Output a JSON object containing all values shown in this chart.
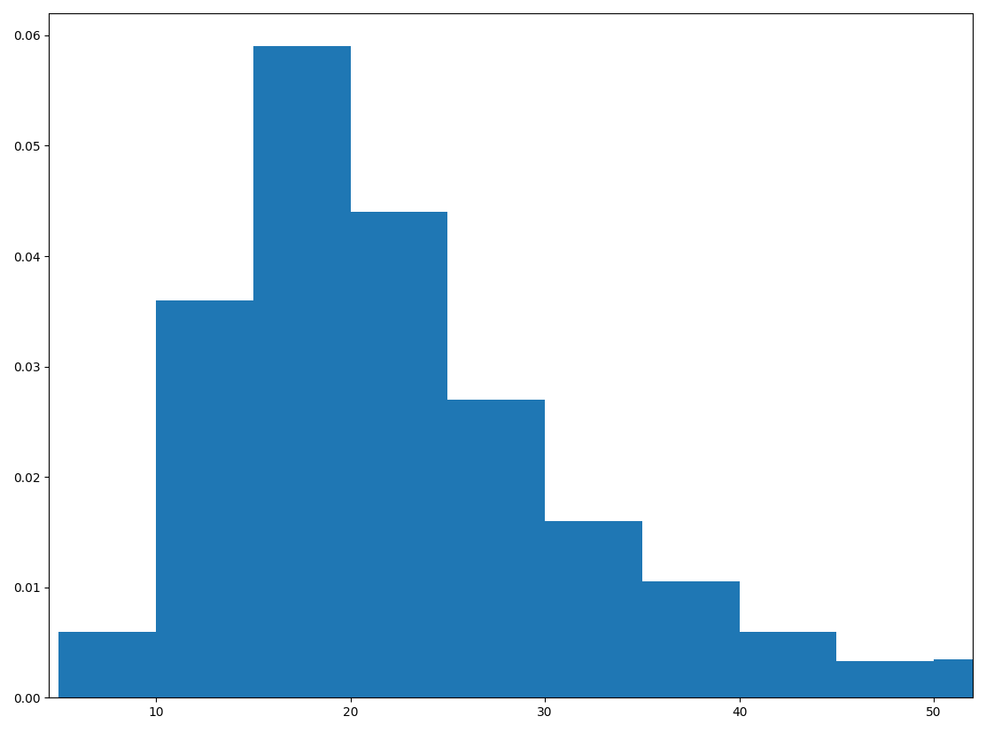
{
  "bin_edges": [
    5,
    10,
    15,
    20,
    25,
    30,
    35,
    40,
    45,
    50,
    52
  ],
  "densities": [
    0.006,
    0.036,
    0.059,
    0.044,
    0.027,
    0.016,
    0.0105,
    0.006,
    0.0033,
    0.0035
  ],
  "bar_color": "#1f77b4",
  "xlim": [
    4.5,
    52
  ],
  "ylim": [
    0,
    0.062
  ],
  "yticks": [
    0.0,
    0.01,
    0.02,
    0.03,
    0.04,
    0.05,
    0.06
  ],
  "xticks": [
    10,
    20,
    30,
    40,
    50
  ],
  "figsize": [
    11.13,
    8.26
  ],
  "dpi": 100
}
